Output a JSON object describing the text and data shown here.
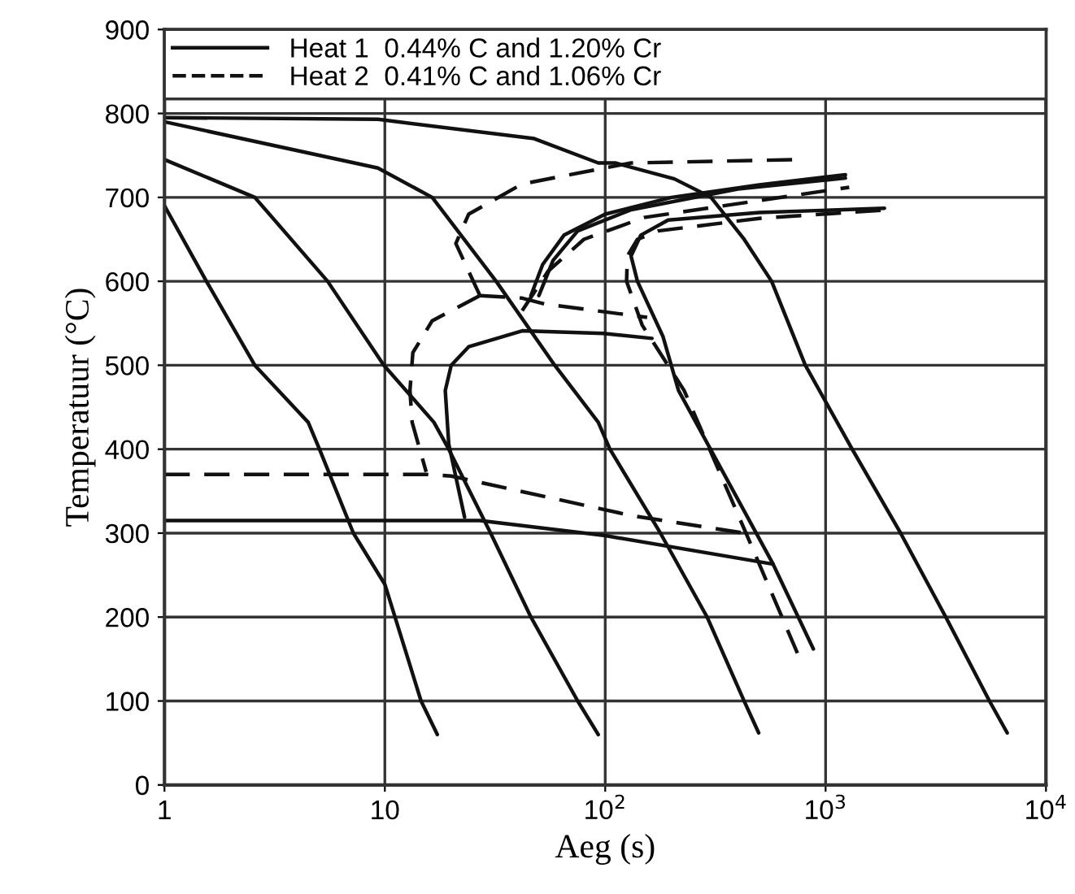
{
  "chart_data": {
    "type": "line",
    "xlabel": "Aeg (s)",
    "ylabel": "Temperatuur (°C)",
    "log": "x",
    "grid": true,
    "legend": "top",
    "marker": "none",
    "xlim": [
      1,
      10000
    ],
    "xticks": [
      1,
      10,
      {
        "value": 100,
        "label": "10$^{2}$"
      },
      {
        "value": 1000,
        "label": "10$^{3}$"
      },
      {
        "value": 10000,
        "label": "10$^{4}$"
      }
    ],
    "ylim": [
      0,
      900
    ],
    "yticks": [
      0,
      100,
      200,
      300,
      400,
      500,
      600,
      700,
      800,
      900
    ],
    "series": [
      {
        "name": "Heat 1  0.44% C and 1.20% Cr",
        "color": "#111111",
        "line_style": "solid",
        "x": [
          46,
          52,
          65,
          100,
          200,
          500,
          1230
        ],
        "values": [
          583,
          620,
          655,
          680,
          700,
          715,
          727
        ]
      },
      {
        "color": "#111111",
        "line_style": "solid",
        "x": [
          50,
          58,
          75,
          130,
          400,
          1230
        ],
        "values": [
          583,
          625,
          660,
          685,
          710,
          723
        ]
      },
      {
        "color": "#111111",
        "line_style": "solid",
        "x": [
          880,
          578,
          215,
          183,
          140,
          131,
          145,
          193,
          500,
          1850
        ],
        "values": [
          162,
          263,
          470,
          534,
          600,
          630,
          655,
          673,
          682,
          687
        ]
      },
      {
        "color": "#111111",
        "line_style": "solid",
        "x": [
          23,
          19.5,
          18.8,
          20,
          24,
          42,
          98,
          163
        ],
        "values": [
          319,
          406,
          470,
          500,
          522,
          541,
          538,
          532
        ]
      },
      {
        "color": "#111111",
        "line_style": "solid",
        "x": [
          1,
          27,
          100,
          578
        ],
        "values": [
          315,
          315,
          297,
          263
        ]
      },
      {
        "name": "Heat 2  0.41% C and 1.06% Cr",
        "color": "#111111",
        "line_style": "dashed",
        "x": [
          27,
          21,
          24,
          42,
          131,
          745
        ],
        "values": [
          583,
          645,
          680,
          716,
          741,
          745
        ]
      },
      {
        "color": "#111111",
        "line_style": "dashed",
        "x": [
          42,
          55,
          80,
          150,
          1280
        ],
        "values": [
          565,
          612,
          650,
          676,
          712
        ]
      },
      {
        "color": "#111111",
        "line_style": "dashed",
        "x": [
          745,
          442,
          228,
          147,
          125,
          126,
          140,
          174,
          500,
          1850
        ],
        "values": [
          157,
          296,
          470,
          548,
          600,
          630,
          650,
          660,
          675,
          685
        ]
      },
      {
        "color": "#111111",
        "line_style": "dashed",
        "x": [
          27,
          42,
          53,
          155
        ],
        "values": [
          583,
          580,
          573,
          557
        ]
      },
      {
        "color": "#111111",
        "line_style": "dashed",
        "x": [
          27,
          16.4,
          13.4,
          13,
          13.3,
          15.4
        ],
        "values": [
          583,
          553,
          515,
          470,
          432,
          373
        ]
      },
      {
        "color": "#111111",
        "line_style": "dashed",
        "x": [
          1,
          15.4,
          20,
          131,
          427
        ],
        "values": [
          370,
          370,
          368,
          321,
          300
        ]
      },
      {
        "color": "#111111",
        "line_style": "solid",
        "x": [
          1,
          1.55,
          2.57,
          4.49,
          5.05,
          7.2,
          10,
          14.6,
          17.3
        ],
        "values": [
          690,
          600,
          500,
          432,
          400,
          300,
          239,
          100,
          60
        ]
      },
      {
        "color": "#111111",
        "line_style": "solid",
        "x": [
          1,
          2.57,
          5.5,
          9.9,
          16.7,
          19.5,
          30.2,
          46,
          75,
          93
        ],
        "values": [
          745,
          700,
          600,
          500,
          432,
          400,
          300,
          200,
          100,
          60
        ]
      },
      {
        "color": "#111111",
        "line_style": "solid",
        "x": [
          1,
          9.3,
          16.4,
          32,
          59,
          93,
          105,
          178,
          290,
          427,
          497
        ],
        "values": [
          790,
          735,
          700,
          600,
          500,
          432,
          400,
          300,
          200,
          100,
          62
        ]
      },
      {
        "color": "#111111",
        "line_style": "solid",
        "x": [
          1,
          9.3,
          47.6,
          93,
          111,
          206,
          302,
          427,
          569,
          809,
          1320,
          2190,
          3510,
          5540,
          6670
        ],
        "values": [
          795,
          793,
          770,
          741,
          741,
          722,
          700,
          650,
          600,
          500,
          400,
          300,
          200,
          100,
          62
        ]
      }
    ]
  }
}
